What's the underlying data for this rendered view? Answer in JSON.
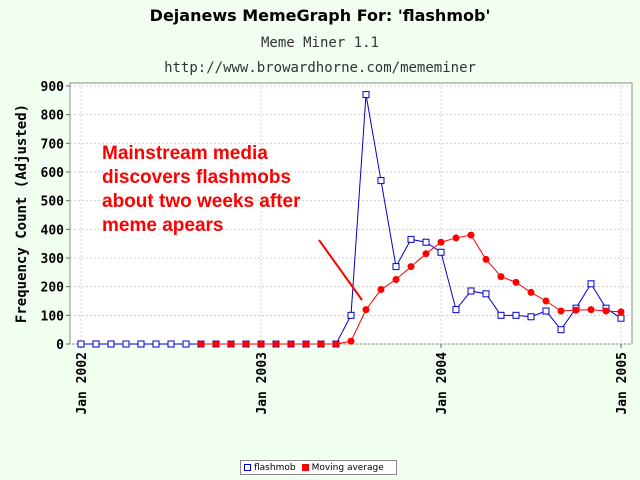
{
  "header": {
    "title": "Dejanews MemeGraph For: 'flashmob'",
    "subtitle_tool": "Meme Miner 1.1",
    "subtitle_url": "http://www.browardhorne.com/mememiner"
  },
  "colors": {
    "background": "#f0fff0",
    "series_flashmob": "#0000cc",
    "series_moving_avg": "#ff0000",
    "annotation": "#ff0000",
    "grid": "#cccccc"
  },
  "chart_data": {
    "type": "line",
    "title": "Dejanews MemeGraph For: 'flashmob'",
    "ylabel": "Frequency Count (Adjusted)",
    "xlabel": "",
    "ylim": [
      0,
      900
    ],
    "yticks": [
      0,
      100,
      200,
      300,
      400,
      500,
      600,
      700,
      800,
      900
    ],
    "xlim": [
      0,
      36
    ],
    "xticks": [
      {
        "x": 0,
        "label": "Jan 2002"
      },
      {
        "x": 12,
        "label": "Jan 2003"
      },
      {
        "x": 24,
        "label": "Jan 2004"
      },
      {
        "x": 36,
        "label": "Jan 2005"
      }
    ],
    "grid": true,
    "legend_position": "bottom",
    "series": [
      {
        "name": "flashmob",
        "marker": "open-square",
        "x": [
          0,
          1,
          2,
          3,
          4,
          5,
          6,
          7,
          8,
          9,
          10,
          11,
          12,
          13,
          14,
          15,
          16,
          17,
          18,
          19,
          20,
          21,
          22,
          23,
          24,
          25,
          26,
          27,
          28,
          29,
          30,
          31,
          32,
          33,
          34,
          35,
          36
        ],
        "values": [
          0,
          0,
          0,
          0,
          0,
          0,
          0,
          0,
          0,
          0,
          0,
          0,
          0,
          0,
          0,
          0,
          0,
          0,
          100,
          870,
          570,
          270,
          365,
          355,
          320,
          120,
          185,
          175,
          100,
          100,
          95,
          115,
          50,
          125,
          210,
          125,
          90
        ]
      },
      {
        "name": "Moving average",
        "marker": "filled-circle",
        "x": [
          8,
          9,
          10,
          11,
          12,
          13,
          14,
          15,
          16,
          17,
          18,
          19,
          20,
          21,
          22,
          23,
          24,
          25,
          26,
          27,
          28,
          29,
          30,
          31,
          32,
          33,
          34,
          35,
          36
        ],
        "values": [
          0,
          0,
          0,
          0,
          0,
          0,
          0,
          0,
          0,
          0,
          10,
          120,
          190,
          225,
          270,
          315,
          355,
          370,
          380,
          295,
          235,
          215,
          180,
          150,
          115,
          118,
          120,
          115,
          112
        ]
      }
    ],
    "annotation": {
      "lines": [
        "Mainstream media",
        "discovers flashmobs",
        "about two weeks after",
        "meme apears"
      ]
    }
  }
}
